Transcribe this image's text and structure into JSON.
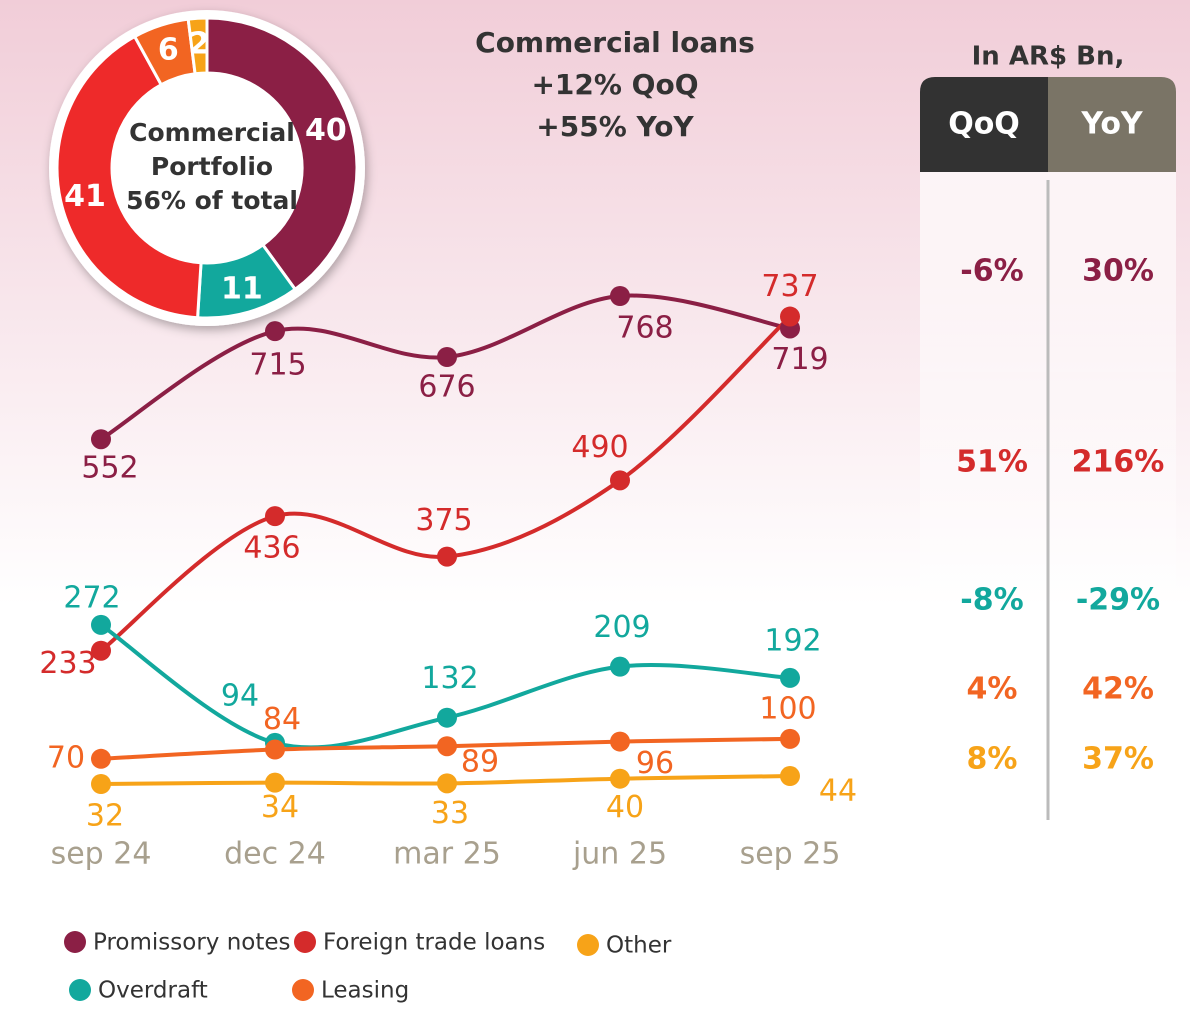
{
  "chart_data": [
    {
      "type": "line",
      "title": "Commercial loans",
      "subtitle": [
        "+12% QoQ",
        "+55% YoY"
      ],
      "categories": [
        "sep 24",
        "dec 24",
        "mar 25",
        "jun 25",
        "sep 25"
      ],
      "series": [
        {
          "name": "Promissory notes",
          "color": "#8b1f45",
          "values": [
            552,
            715,
            676,
            768,
            719
          ]
        },
        {
          "name": "Foreign trade loans",
          "color": "#d42b2b",
          "values": [
            233,
            436,
            375,
            490,
            737
          ]
        },
        {
          "name": "Overdraft",
          "color": "#12a89d",
          "values": [
            272,
            94,
            132,
            209,
            192
          ]
        },
        {
          "name": "Leasing",
          "color": "#f26522",
          "values": [
            70,
            84,
            89,
            96,
            100
          ]
        },
        {
          "name": "Other",
          "color": "#f7a318",
          "values": [
            32,
            34,
            33,
            40,
            44
          ]
        }
      ]
    },
    {
      "type": "pie",
      "values": [
        40,
        11,
        41,
        6,
        2
      ],
      "colors": [
        "#8b1f45",
        "#12a89d",
        "#ee2a2a",
        "#f26522",
        "#f7a318"
      ],
      "center_text": [
        "Commercial",
        "Portfolio",
        "56% of total"
      ]
    }
  ],
  "table": {
    "header": "In AR$ Bn,",
    "columns": [
      "QoQ",
      "YoY"
    ],
    "rows": [
      [
        "-6%",
        "30%"
      ],
      [
        "51%",
        "216%"
      ],
      [
        "-8%",
        "-29%"
      ],
      [
        "4%",
        "42%"
      ],
      [
        "8%",
        "37%"
      ]
    ]
  }
}
